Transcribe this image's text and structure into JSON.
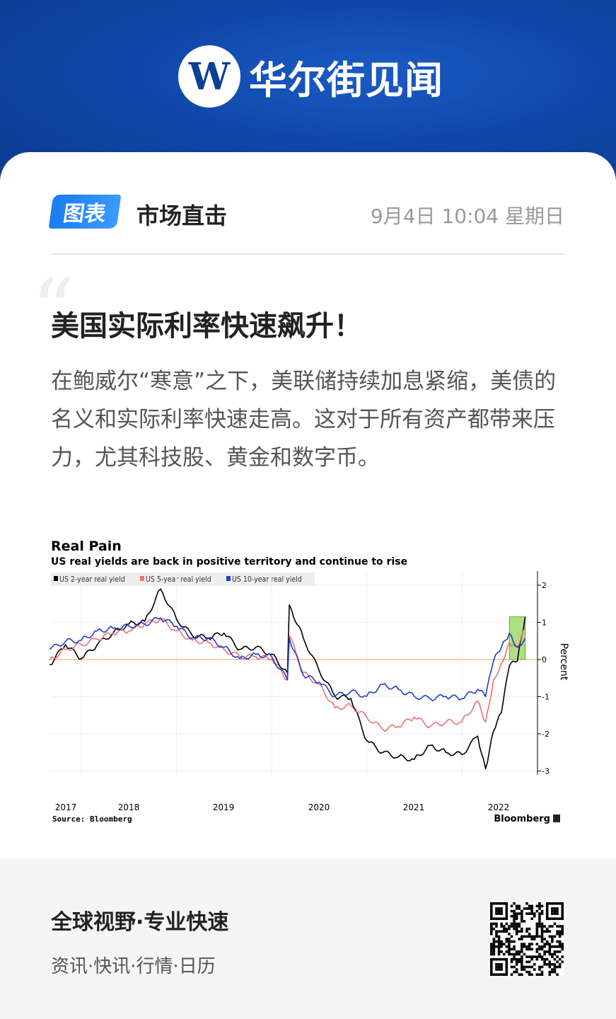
{
  "header": {
    "brand": "华尔街见闻",
    "logo_letter": "W"
  },
  "article": {
    "tag": "图表",
    "category": "市场直击",
    "datetime": "9月4日 10:04 星期日",
    "title": "美国实际利率快速飙升！",
    "body": "在鲍威尔“寒意”之下，美联储持续加息紧缩，美债的名义和实际利率快速走高。这对于所有资产都带来压力，尤其科技股、黄金和数字币。"
  },
  "chart_data": {
    "type": "line",
    "title": "Real Pain",
    "subtitle": "US real yields are back in positive territory and continue to rise",
    "ylabel": "Percent",
    "ylim": [
      -3.5,
      2.3
    ],
    "yticks": [
      "2",
      "1",
      "0",
      "-1",
      "-2",
      "-3"
    ],
    "xticks": [
      "2017",
      "2018",
      "2019",
      "2020",
      "2021",
      "2022"
    ],
    "source": "Source: Bloomberg",
    "brand": "Bloomberg",
    "grid": true,
    "legend_position": "top-left",
    "zero_line_color": "#f0a060",
    "highlight": {
      "x": [
        "2022-07",
        "2022-09"
      ],
      "y": [
        0,
        1.15
      ],
      "color": "#8fd14f"
    },
    "x": [
      "2017-09",
      "2017-11",
      "2018-01",
      "2018-03",
      "2018-05",
      "2018-07",
      "2018-09",
      "2018-11",
      "2019-01",
      "2019-03",
      "2019-05",
      "2019-07",
      "2019-09",
      "2019-11",
      "2020-01",
      "2020-03",
      "2020-03",
      "2020-05",
      "2020-07",
      "2020-09",
      "2020-11",
      "2021-01",
      "2021-03",
      "2021-05",
      "2021-07",
      "2021-09",
      "2021-11",
      "2022-01",
      "2022-03",
      "2022-04",
      "2022-05",
      "2022-06",
      "2022-07",
      "2022-08",
      "2022-09"
    ],
    "series": [
      {
        "name": "US 2-year real yield",
        "color": "#000000",
        "values": [
          -0.14,
          0.4,
          0.02,
          0.4,
          0.71,
          0.96,
          1.03,
          1.9,
          1.09,
          0.65,
          0.58,
          0.71,
          0.27,
          0.33,
          0.14,
          -0.36,
          1.47,
          0.58,
          -0.3,
          -0.99,
          -1.05,
          -2.18,
          -2.5,
          -2.62,
          -2.69,
          -2.31,
          -2.5,
          -2.56,
          -2.06,
          -2.94,
          -1.93,
          -1.43,
          -0.17,
          -0.04,
          1.15
        ]
      },
      {
        "name": "US 5-year real yield",
        "color": "#f07070",
        "values": [
          -0.01,
          0.27,
          0.4,
          0.55,
          0.71,
          0.77,
          0.96,
          1.09,
          0.77,
          0.52,
          0.46,
          0.27,
          0.08,
          0.08,
          0.02,
          -0.55,
          0.65,
          -0.36,
          -0.67,
          -1.3,
          -1.24,
          -1.55,
          -1.87,
          -1.8,
          -1.55,
          -1.8,
          -1.68,
          -1.68,
          -1.11,
          -1.68,
          -0.55,
          -0.1,
          0.46,
          0.33,
          0.84
        ]
      },
      {
        "name": "US 10-year real yield",
        "color": "#1f3fc8",
        "values": [
          0.27,
          0.49,
          0.52,
          0.77,
          0.84,
          0.9,
          0.95,
          1.12,
          0.9,
          0.58,
          0.58,
          0.33,
          0.02,
          0.14,
          0.08,
          -0.55,
          0.58,
          -0.42,
          -0.61,
          -0.99,
          -0.86,
          -0.99,
          -0.67,
          -0.8,
          -0.99,
          -1.05,
          -0.99,
          -1.05,
          -0.8,
          -1.0,
          -0.04,
          0.33,
          0.71,
          0.33,
          0.58
        ]
      }
    ]
  },
  "footer": {
    "slogan": "全球视野·专业快速",
    "services": "资讯·快讯·行情·日历"
  }
}
